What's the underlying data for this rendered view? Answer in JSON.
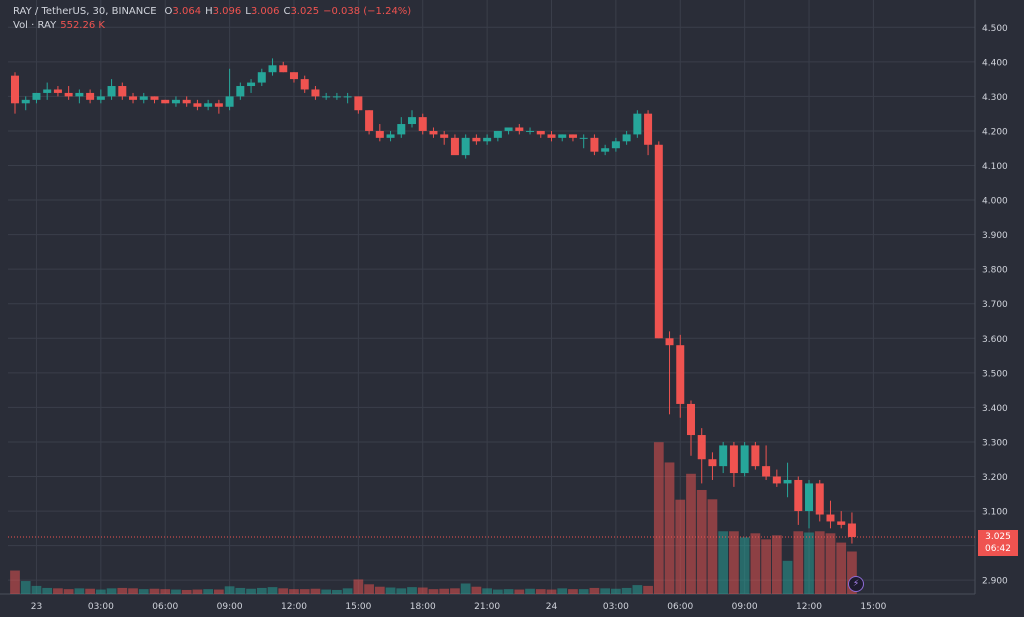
{
  "legend": {
    "symbol": "RAY / TetherUS, 30, BINANCE",
    "open_label": "O",
    "open": "3.064",
    "high_label": "H",
    "high": "3.096",
    "low_label": "L",
    "low": "3.006",
    "close_label": "C",
    "close": "3.025",
    "change": "−0.038 (−1.24%)",
    "vol_label": "Vol · RAY",
    "vol_value": "552.26 K"
  },
  "price_tag": {
    "price": "3.025",
    "countdown": "06:42"
  },
  "colors": {
    "up": "#26a69a",
    "down": "#ef5350",
    "background": "#2a2d38",
    "grid": "#3a3e4a",
    "axis_text": "#d1d4dc"
  },
  "chart_data": {
    "type": "candlestick",
    "symbol": "RAY / TetherUS",
    "interval": "30",
    "exchange": "BINANCE",
    "ylim": [
      2.86,
      4.55
    ],
    "y_ticks": [
      "2.900",
      "3.000",
      "3.100",
      "3.200",
      "3.300",
      "3.400",
      "3.500",
      "3.600",
      "3.700",
      "3.800",
      "3.900",
      "4.000",
      "4.100",
      "4.200",
      "4.300",
      "4.400",
      "4.500"
    ],
    "x_ticks": [
      "23",
      "03:00",
      "06:00",
      "09:00",
      "12:00",
      "15:00",
      "18:00",
      "21:00",
      "24",
      "03:00",
      "06:00",
      "09:00",
      "12:00",
      "15:00"
    ],
    "x_tick_index": [
      2,
      8,
      14,
      20,
      26,
      32,
      38,
      44,
      50,
      56,
      62,
      68,
      74,
      80
    ],
    "grid": true,
    "current_price": 3.025,
    "candles": [
      [
        4.36,
        4.37,
        4.25,
        4.28
      ],
      [
        4.28,
        4.3,
        4.26,
        4.29
      ],
      [
        4.29,
        4.31,
        4.28,
        4.31
      ],
      [
        4.31,
        4.34,
        4.29,
        4.32
      ],
      [
        4.32,
        4.33,
        4.3,
        4.31
      ],
      [
        4.31,
        4.33,
        4.29,
        4.3
      ],
      [
        4.3,
        4.32,
        4.28,
        4.31
      ],
      [
        4.31,
        4.32,
        4.28,
        4.29
      ],
      [
        4.29,
        4.32,
        4.28,
        4.3
      ],
      [
        4.3,
        4.35,
        4.29,
        4.33
      ],
      [
        4.33,
        4.34,
        4.29,
        4.3
      ],
      [
        4.3,
        4.31,
        4.28,
        4.29
      ],
      [
        4.29,
        4.31,
        4.28,
        4.3
      ],
      [
        4.3,
        4.3,
        4.28,
        4.29
      ],
      [
        4.29,
        4.29,
        4.28,
        4.28
      ],
      [
        4.28,
        4.3,
        4.27,
        4.29
      ],
      [
        4.29,
        4.3,
        4.27,
        4.28
      ],
      [
        4.28,
        4.29,
        4.26,
        4.27
      ],
      [
        4.27,
        4.29,
        4.26,
        4.28
      ],
      [
        4.28,
        4.29,
        4.25,
        4.27
      ],
      [
        4.27,
        4.38,
        4.26,
        4.3
      ],
      [
        4.3,
        4.34,
        4.29,
        4.33
      ],
      [
        4.33,
        4.35,
        4.31,
        4.34
      ],
      [
        4.34,
        4.38,
        4.33,
        4.37
      ],
      [
        4.37,
        4.41,
        4.36,
        4.39
      ],
      [
        4.39,
        4.4,
        4.37,
        4.37
      ],
      [
        4.37,
        4.37,
        4.34,
        4.35
      ],
      [
        4.35,
        4.36,
        4.31,
        4.32
      ],
      [
        4.32,
        4.33,
        4.29,
        4.3
      ],
      [
        4.3,
        4.31,
        4.29,
        4.3
      ],
      [
        4.3,
        4.31,
        4.29,
        4.3
      ],
      [
        4.3,
        4.31,
        4.28,
        4.3
      ],
      [
        4.3,
        4.3,
        4.25,
        4.26
      ],
      [
        4.26,
        4.26,
        4.19,
        4.2
      ],
      [
        4.2,
        4.22,
        4.17,
        4.18
      ],
      [
        4.18,
        4.2,
        4.17,
        4.19
      ],
      [
        4.19,
        4.24,
        4.18,
        4.22
      ],
      [
        4.22,
        4.26,
        4.21,
        4.24
      ],
      [
        4.24,
        4.25,
        4.19,
        4.2
      ],
      [
        4.2,
        4.21,
        4.18,
        4.19
      ],
      [
        4.19,
        4.2,
        4.16,
        4.18
      ],
      [
        4.18,
        4.19,
        4.14,
        4.13
      ],
      [
        4.13,
        4.19,
        4.12,
        4.18
      ],
      [
        4.18,
        4.19,
        4.16,
        4.17
      ],
      [
        4.17,
        4.19,
        4.16,
        4.18
      ],
      [
        4.18,
        4.2,
        4.17,
        4.2
      ],
      [
        4.2,
        4.21,
        4.19,
        4.21
      ],
      [
        4.21,
        4.22,
        4.19,
        4.2
      ],
      [
        4.2,
        4.21,
        4.19,
        4.2
      ],
      [
        4.2,
        4.2,
        4.18,
        4.19
      ],
      [
        4.19,
        4.2,
        4.17,
        4.18
      ],
      [
        4.18,
        4.19,
        4.17,
        4.19
      ],
      [
        4.19,
        4.19,
        4.17,
        4.18
      ],
      [
        4.18,
        4.19,
        4.15,
        4.18
      ],
      [
        4.18,
        4.19,
        4.13,
        4.14
      ],
      [
        4.14,
        4.16,
        4.13,
        4.15
      ],
      [
        4.15,
        4.18,
        4.14,
        4.17
      ],
      [
        4.17,
        4.2,
        4.16,
        4.19
      ],
      [
        4.19,
        4.26,
        4.18,
        4.25
      ],
      [
        4.25,
        4.26,
        4.13,
        4.16
      ],
      [
        4.16,
        4.17,
        3.6,
        3.6
      ],
      [
        3.6,
        3.62,
        3.38,
        3.58
      ],
      [
        3.58,
        3.61,
        3.37,
        3.41
      ],
      [
        3.41,
        3.42,
        3.26,
        3.32
      ],
      [
        3.32,
        3.34,
        3.18,
        3.25
      ],
      [
        3.25,
        3.27,
        3.19,
        3.23
      ],
      [
        3.23,
        3.3,
        3.21,
        3.29
      ],
      [
        3.29,
        3.3,
        3.17,
        3.21
      ],
      [
        3.21,
        3.3,
        3.2,
        3.29
      ],
      [
        3.29,
        3.3,
        3.22,
        3.23
      ],
      [
        3.23,
        3.29,
        3.19,
        3.2
      ],
      [
        3.2,
        3.22,
        3.17,
        3.18
      ],
      [
        3.18,
        3.24,
        3.14,
        3.19
      ],
      [
        3.19,
        3.2,
        3.06,
        3.1
      ],
      [
        3.1,
        3.19,
        3.05,
        3.18
      ],
      [
        3.18,
        3.19,
        3.07,
        3.09
      ],
      [
        3.09,
        3.13,
        3.05,
        3.07
      ],
      [
        3.07,
        3.1,
        3.05,
        3.06
      ],
      [
        3.064,
        3.096,
        3.006,
        3.025
      ]
    ],
    "volume": [
      0.58,
      0.32,
      0.2,
      0.15,
      0.14,
      0.12,
      0.14,
      0.13,
      0.11,
      0.14,
      0.15,
      0.14,
      0.12,
      0.13,
      0.12,
      0.11,
      0.1,
      0.11,
      0.12,
      0.11,
      0.19,
      0.15,
      0.13,
      0.15,
      0.17,
      0.14,
      0.12,
      0.12,
      0.13,
      0.11,
      0.1,
      0.14,
      0.36,
      0.24,
      0.18,
      0.16,
      0.14,
      0.17,
      0.16,
      0.12,
      0.13,
      0.14,
      0.26,
      0.18,
      0.14,
      0.11,
      0.12,
      0.11,
      0.13,
      0.12,
      0.11,
      0.14,
      0.12,
      0.12,
      0.15,
      0.14,
      0.13,
      0.15,
      0.22,
      0.2,
      3.75,
      3.25,
      2.33,
      2.97,
      2.57,
      2.34,
      1.55,
      1.55,
      1.4,
      1.5,
      1.35,
      1.45,
      0.82,
      1.55,
      1.52,
      1.55,
      1.5,
      1.27,
      1.05
    ],
    "volume_ylim": [
      0,
      4.2
    ]
  }
}
